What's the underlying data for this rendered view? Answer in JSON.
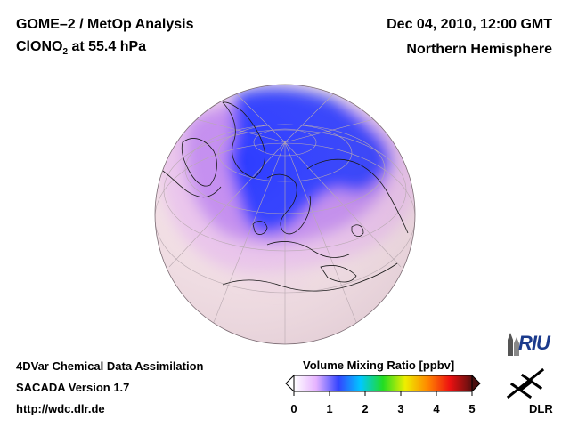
{
  "header": {
    "title_left_line1": "GOME–2 / MetOp Analysis",
    "species_prefix": "ClONO",
    "species_subscript": "2",
    "species_suffix": " at 55.4 hPa",
    "date_time": "Dec 04, 2010, 12:00 GMT",
    "region": "Northern Hemisphere"
  },
  "footer": {
    "line1": "4DVar Chemical Data Assimilation",
    "line2": "SACADA Version 1.7",
    "line3": "http://wdc.dlr.de"
  },
  "colorbar": {
    "title": "Volume Mixing Ratio [ppbv]",
    "ticks": [
      "0",
      "1",
      "2",
      "3",
      "4",
      "5"
    ],
    "range": [
      0,
      5
    ],
    "colors": [
      "#ffffff",
      "#e6b3ff",
      "#3344ff",
      "#00c8ff",
      "#22dd22",
      "#eeee00",
      "#ff8800",
      "#ee1111",
      "#5a0f0f"
    ]
  },
  "logos": {
    "riu": "RIU",
    "dlr": "DLR"
  },
  "map_colors": {
    "globe_base": "#f6e3e8",
    "low_vmr": "#ecc6ee",
    "mid_vmr": "#c48df0",
    "high_vmr": "#2d3dff"
  }
}
